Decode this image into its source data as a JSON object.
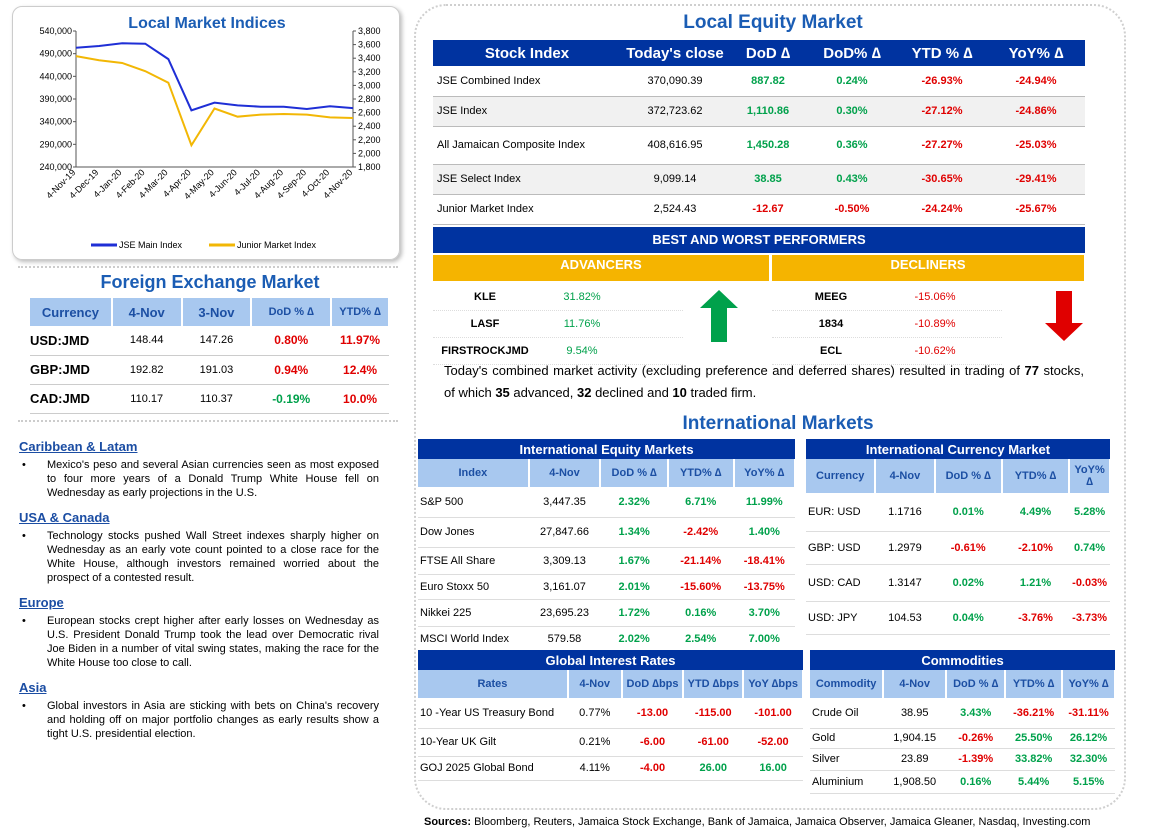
{
  "chart": {
    "title": "Local Market Indices",
    "left_ticks": [
      "540,000",
      "490,000",
      "440,000",
      "390,000",
      "340,000",
      "290,000",
      "240,000"
    ],
    "right_ticks": [
      "3,800",
      "3,600",
      "3,400",
      "3,200",
      "3,000",
      "2,800",
      "2,600",
      "2,400",
      "2,200",
      "2,000",
      "1,800"
    ],
    "x_ticks": [
      "4-Nov-19",
      "4-Dec-19",
      "4-Jan-20",
      "4-Feb-20",
      "4-Mar-20",
      "4-Apr-20",
      "4-May-20",
      "4-Jun-20",
      "4-Jul-20",
      "4-Aug-20",
      "4-Sep-20",
      "4-Oct-20",
      "4-Nov-20"
    ],
    "legend_main": "JSE Main Index",
    "legend_junior": "Junior Market Index",
    "main_color": "#1f2fd6",
    "junior_color": "#f2b705"
  },
  "chart_data": {
    "type": "line",
    "title": "Local Market Indices",
    "x": [
      "4-Nov-19",
      "4-Dec-19",
      "4-Jan-20",
      "4-Feb-20",
      "4-Mar-20",
      "4-Apr-20",
      "4-May-20",
      "4-Jun-20",
      "4-Jul-20",
      "4-Aug-20",
      "4-Sep-20",
      "4-Oct-20",
      "4-Nov-20"
    ],
    "series": [
      {
        "name": "JSE Main Index",
        "axis": "left",
        "values": [
          503000,
          507000,
          513000,
          512000,
          478000,
          365000,
          382000,
          376000,
          373000,
          373000,
          368000,
          374000,
          370000
        ]
      },
      {
        "name": "Junior Market Index",
        "axis": "right",
        "values": [
          3430,
          3370,
          3330,
          3210,
          3040,
          2120,
          2660,
          2540,
          2570,
          2580,
          2570,
          2530,
          2520
        ]
      }
    ],
    "ylim_left": [
      240000,
      540000
    ],
    "ylim_right": [
      1800,
      3800
    ],
    "grid": false,
    "legend": "bottom"
  },
  "fx": {
    "title": "Foreign Exchange Market",
    "headers": [
      "Currency",
      "4-Nov",
      "3-Nov",
      "DoD % ∆",
      "YTD% ∆"
    ],
    "rows": [
      {
        "c": "USD:JMD",
        "a": "148.44",
        "b": "147.26",
        "d": "0.80%",
        "y": "11.97%",
        "dc": "red",
        "yc": "red"
      },
      {
        "c": "GBP:JMD",
        "a": "192.82",
        "b": "191.03",
        "d": "0.94%",
        "y": "12.4%",
        "dc": "red",
        "yc": "red"
      },
      {
        "c": "CAD:JMD",
        "a": "110.17",
        "b": "110.37",
        "d": "-0.19%",
        "y": "10.0%",
        "dc": "green",
        "yc": "red"
      }
    ]
  },
  "news": [
    {
      "h": "Caribbean & Latam",
      "p": "Mexico's peso and several Asian currencies seen as most exposed to four more years of a Donald Trump White House fell on Wednesday as early projections in the U.S."
    },
    {
      "h": "USA & Canada",
      "p": "Technology stocks pushed Wall Street indexes sharply higher on Wednesday as an early vote count pointed to a close race for the White House, although investors remained worried about the prospect of a contested result."
    },
    {
      "h": "Europe",
      "p": "European stocks crept higher after early losses on Wednesday as U.S. President Donald Trump took the lead over Democratic rival Joe Biden in a number of vital swing states, making the race for the White House too close to call."
    },
    {
      "h": "Asia",
      "p": "Global investors in Asia are sticking with bets on China's recovery and holding off on major portfolio changes as early results show a tight U.S. presidential election."
    }
  ],
  "local": {
    "title": "Local Equity Market",
    "headers": [
      "Stock Index",
      "Today's close",
      "DoD  ∆",
      "DoD% ∆",
      "YTD % ∆",
      "YoY% ∆"
    ],
    "rows": [
      {
        "n": "JSE Combined Index",
        "c": "370,090.39",
        "d": "887.82",
        "dp": "0.24%",
        "y": "-26.93%",
        "yy": "-24.94%",
        "dc": "green"
      },
      {
        "n": "JSE Index",
        "c": "372,723.62",
        "d": "1,110.86",
        "dp": "0.30%",
        "y": "-27.12%",
        "yy": "-24.86%",
        "dc": "green"
      },
      {
        "n": "All Jamaican Composite Index",
        "c": "408,616.95",
        "d": "1,450.28",
        "dp": "0.36%",
        "y": "-27.27%",
        "yy": "-25.03%",
        "dc": "green"
      },
      {
        "n": "JSE Select Index",
        "c": "9,099.14",
        "d": "38.85",
        "dp": "0.43%",
        "y": "-30.65%",
        "yy": "-29.41%",
        "dc": "green"
      },
      {
        "n": "Junior Market Index",
        "c": "2,524.43",
        "d": "-12.67",
        "dp": "-0.50%",
        "y": "-24.24%",
        "yy": "-25.67%",
        "dc": "red"
      }
    ],
    "bw_title": "BEST AND WORST PERFORMERS",
    "adv_title": "ADVANCERS",
    "dec_title": "DECLINERS",
    "advancers": [
      {
        "n": "KLE",
        "v": "31.82%"
      },
      {
        "n": "LASF",
        "v": "11.76%"
      },
      {
        "n": "FIRSTROCKJMD",
        "v": "9.54%"
      }
    ],
    "decliners": [
      {
        "n": "MEEG",
        "v": "-15.06%"
      },
      {
        "n": "1834",
        "v": "-10.89%"
      },
      {
        "n": "ECL",
        "v": "-10.62%"
      }
    ],
    "summary_1": "Today's combined market activity (excluding preference and deferred shares) resulted in trading of ",
    "summary_n1": "77",
    "summary_2": " stocks, of which ",
    "summary_n2": "35",
    "summary_3": " advanced, ",
    "summary_n3": "32",
    "summary_4": " declined and ",
    "summary_n4": "10",
    "summary_5": " traded firm."
  },
  "intl": {
    "title": "International Markets",
    "equity": {
      "title": "International Equity Markets",
      "headers": [
        "Index",
        "4-Nov",
        "DoD % ∆",
        "YTD% ∆",
        "YoY% ∆"
      ],
      "rows": [
        {
          "n": "S&P 500",
          "v": "3,447.35",
          "d": "2.32%",
          "y": "6.71%",
          "yy": "11.99%",
          "dc": "green",
          "yc": "green",
          "yyc": "green"
        },
        {
          "n": "Dow Jones",
          "v": "27,847.66",
          "d": "1.34%",
          "y": "-2.42%",
          "yy": "1.40%",
          "dc": "green",
          "yc": "red",
          "yyc": "green"
        },
        {
          "n": "FTSE All Share",
          "v": "3,309.13",
          "d": "1.67%",
          "y": "-21.14%",
          "yy": "-18.41%",
          "dc": "green",
          "yc": "red",
          "yyc": "red"
        },
        {
          "n": "Euro Stoxx 50",
          "v": "3,161.07",
          "d": "2.01%",
          "y": "-15.60%",
          "yy": "-13.75%",
          "dc": "green",
          "yc": "red",
          "yyc": "red"
        },
        {
          "n": "Nikkei 225",
          "v": "23,695.23",
          "d": "1.72%",
          "y": "0.16%",
          "yy": "3.70%",
          "dc": "green",
          "yc": "green",
          "yyc": "green"
        },
        {
          "n": "MSCI World Index",
          "v": "579.58",
          "d": "2.02%",
          "y": "2.54%",
          "yy": "7.00%",
          "dc": "green",
          "yc": "green",
          "yyc": "green"
        }
      ]
    },
    "currency": {
      "title": "International Currency Market",
      "headers": [
        "Currency",
        "4-Nov",
        "DoD % ∆",
        "YTD% ∆",
        "YoY% ∆"
      ],
      "rows": [
        {
          "n": "EUR: USD",
          "v": "1.1716",
          "d": "0.01%",
          "y": "4.49%",
          "yy": "5.28%",
          "dc": "green",
          "yc": "green",
          "yyc": "green"
        },
        {
          "n": "GBP: USD",
          "v": "1.2979",
          "d": "-0.61%",
          "y": "-2.10%",
          "yy": "0.74%",
          "dc": "red",
          "yc": "red",
          "yyc": "green"
        },
        {
          "n": "USD: CAD",
          "v": "1.3147",
          "d": "0.02%",
          "y": "1.21%",
          "yy": "-0.03%",
          "dc": "green",
          "yc": "green",
          "yyc": "red"
        },
        {
          "n": "USD: JPY",
          "v": "104.53",
          "d": "0.04%",
          "y": "-3.76%",
          "yy": "-3.73%",
          "dc": "green",
          "yc": "red",
          "yyc": "red"
        }
      ]
    },
    "rates": {
      "title": "Global Interest Rates",
      "headers": [
        "Rates",
        "4-Nov",
        "DoD ∆bps",
        "YTD ∆bps",
        "YoY ∆bps"
      ],
      "rows": [
        {
          "n": "10 -Year US Treasury Bond",
          "v": "0.77%",
          "d": "-13.00",
          "y": "-115.00",
          "yy": "-101.00",
          "dc": "red",
          "yc": "red",
          "yyc": "red"
        },
        {
          "n": "10-Year UK Gilt",
          "v": "0.21%",
          "d": "-6.00",
          "y": "-61.00",
          "yy": "-52.00",
          "dc": "red",
          "yc": "red",
          "yyc": "red"
        },
        {
          "n": "GOJ 2025 Global Bond",
          "v": "4.11%",
          "d": "-4.00",
          "y": "26.00",
          "yy": "16.00",
          "dc": "red",
          "yc": "green",
          "yyc": "green"
        }
      ]
    },
    "commod": {
      "title": "Commodities",
      "headers": [
        "Commodity",
        "4-Nov",
        "DoD % ∆",
        "YTD% ∆",
        "YoY% ∆"
      ],
      "rows": [
        {
          "n": "Crude Oil",
          "v": "38.95",
          "d": "3.43%",
          "y": "-36.21%",
          "yy": "-31.11%",
          "dc": "green",
          "yc": "red",
          "yyc": "red"
        },
        {
          "n": "Gold",
          "v": "1,904.15",
          "d": "-0.26%",
          "y": "25.50%",
          "yy": "26.12%",
          "dc": "red",
          "yc": "green",
          "yyc": "green"
        },
        {
          "n": "Silver",
          "v": "23.89",
          "d": "-1.39%",
          "y": "33.82%",
          "yy": "32.30%",
          "dc": "red",
          "yc": "green",
          "yyc": "green"
        },
        {
          "n": "Aluminium",
          "v": "1,908.50",
          "d": "0.16%",
          "y": "5.44%",
          "yy": "5.15%",
          "dc": "green",
          "yc": "green",
          "yyc": "green"
        }
      ]
    }
  },
  "sources_label": "Sources:",
  "sources_text": " Bloomberg, Reuters, Jamaica Stock Exchange, Bank of Jamaica, Jamaica Observer, Jamaica Gleaner, Nasdaq, Investing.com"
}
